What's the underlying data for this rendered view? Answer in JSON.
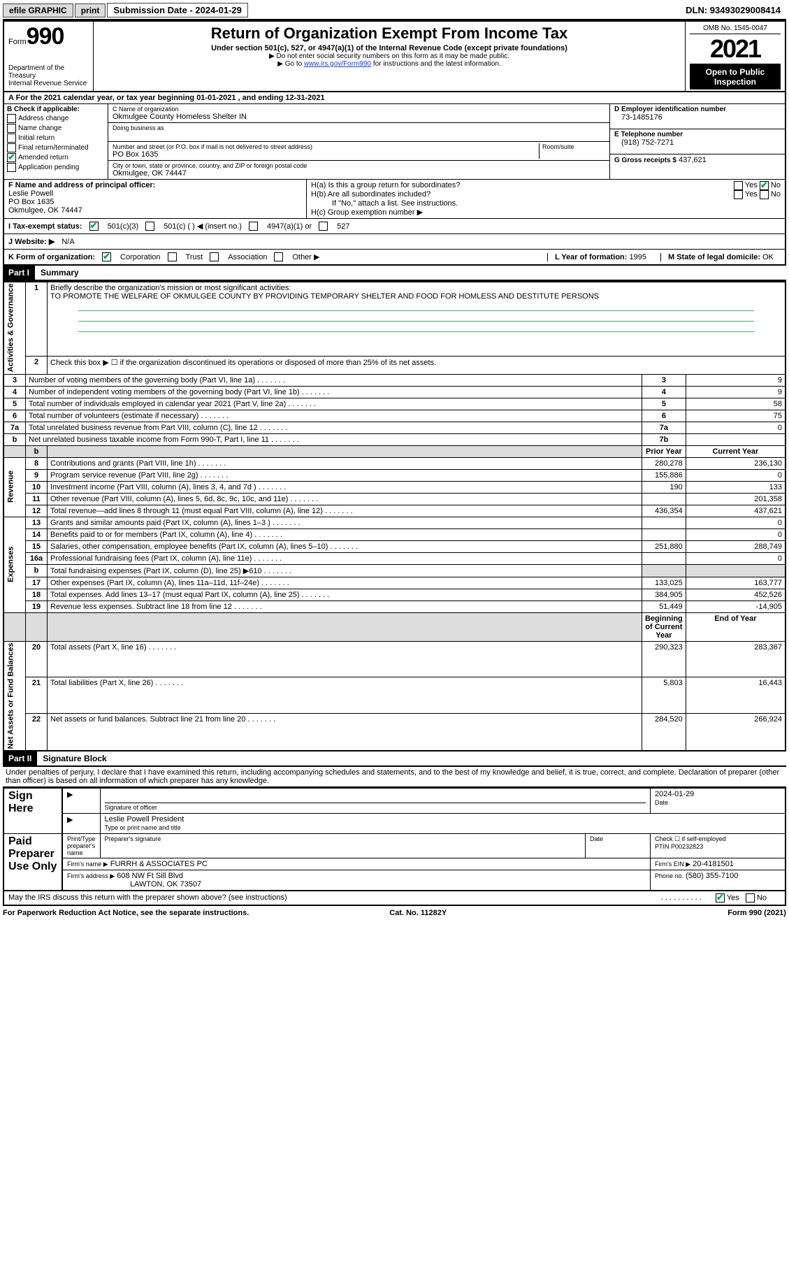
{
  "topbar": {
    "efile": "efile GRAPHIC",
    "print": "print",
    "subdate_label": "Submission Date - 2024-01-29",
    "dln": "DLN: 93493029008414"
  },
  "header": {
    "form_word": "Form",
    "form_no": "990",
    "dept": "Department of the Treasury\nInternal Revenue Service",
    "title": "Return of Organization Exempt From Income Tax",
    "subtitle": "Under section 501(c), 527, or 4947(a)(1) of the Internal Revenue Code (except private foundations)",
    "note1": "▶ Do not enter social security numbers on this form as it may be made public.",
    "note2_pre": "▶ Go to ",
    "note2_link": "www.irs.gov/Form990",
    "note2_post": " for instructions and the latest information.",
    "omb": "OMB No. 1545-0047",
    "year": "2021",
    "otp": "Open to Public Inspection"
  },
  "rowA": "A For the 2021 calendar year, or tax year beginning 01-01-2021   , and ending 12-31-2021",
  "boxB": {
    "label": "B Check if applicable:",
    "opts": [
      "Address change",
      "Name change",
      "Initial return",
      "Final return/terminated",
      "Amended return",
      "Application pending"
    ],
    "checked_idx": 4
  },
  "boxC": {
    "name_lbl": "C Name of organization",
    "name": "Okmulgee County Homeless Shelter IN",
    "dba_lbl": "Doing business as",
    "addr_lbl": "Number and street (or P.O. box if mail is not delivered to street address)",
    "room_lbl": "Room/suite",
    "addr": "PO Box 1635",
    "city_lbl": "City or town, state or province, country, and ZIP or foreign postal code",
    "city": "Okmulgee, OK  74447"
  },
  "boxD": {
    "lbl": "D Employer identification number",
    "val": "73-1485176"
  },
  "boxE": {
    "lbl": "E Telephone number",
    "val": "(918) 752-7271"
  },
  "boxG": {
    "lbl": "G Gross receipts $",
    "val": "437,621"
  },
  "boxF": {
    "lbl": "F Name and address of principal officer:",
    "name": "Leslie Powell",
    "addr": "PO Box 1635",
    "city": "Okmulgee, OK  74447"
  },
  "boxH": {
    "ha": "H(a)  Is this a group return for subordinates?",
    "hb": "H(b)  Are all subordinates included?",
    "hb_note": "If \"No,\" attach a list. See instructions.",
    "hc": "H(c)  Group exemption number ▶",
    "yes": "Yes",
    "no": "No"
  },
  "rowI": {
    "lbl": "I  Tax-exempt status:",
    "o1": "501(c)(3)",
    "o2": "501(c) (  ) ◀ (insert no.)",
    "o3": "4947(a)(1) or",
    "o4": "527"
  },
  "rowJ": {
    "lbl": "J  Website: ▶",
    "val": "N/A"
  },
  "rowK": {
    "lbl": "K Form of organization:",
    "o1": "Corporation",
    "o2": "Trust",
    "o3": "Association",
    "o4": "Other ▶"
  },
  "rowL": {
    "lbl": "L Year of formation:",
    "val": "1995"
  },
  "rowM": {
    "lbl": "M State of legal domicile:",
    "val": "OK"
  },
  "part1": {
    "hdr": "Part I",
    "title": "Summary"
  },
  "summary": {
    "q1_lbl": "Briefly describe the organization's mission or most significant activities:",
    "q1_val": "TO PROMOTE THE WELFARE OF OKMULGEE COUNTY BY PROVIDING TEMPORARY SHELTER AND FOOD FOR HOMLESS AND DESTITUTE PERSONS",
    "q2": "Check this box ▶ ☐ if the organization discontinued its operations or disposed of more than 25% of its net assets.",
    "lines_gov": [
      {
        "n": "3",
        "t": "Number of voting members of the governing body (Part VI, line 1a)",
        "box": "3",
        "v": "9"
      },
      {
        "n": "4",
        "t": "Number of independent voting members of the governing body (Part VI, line 1b)",
        "box": "4",
        "v": "9"
      },
      {
        "n": "5",
        "t": "Total number of individuals employed in calendar year 2021 (Part V, line 2a)",
        "box": "5",
        "v": "58"
      },
      {
        "n": "6",
        "t": "Total number of volunteers (estimate if necessary)",
        "box": "6",
        "v": "75"
      },
      {
        "n": "7a",
        "t": "Total unrelated business revenue from Part VIII, column (C), line 12",
        "box": "7a",
        "v": "0"
      },
      {
        "n": "b",
        "t": "Net unrelated business taxable income from Form 990-T, Part I, line 11",
        "box": "7b",
        "v": ""
      }
    ],
    "col_prior": "Prior Year",
    "col_curr": "Current Year",
    "rev": [
      {
        "n": "8",
        "t": "Contributions and grants (Part VIII, line 1h)",
        "p": "280,278",
        "c": "236,130"
      },
      {
        "n": "9",
        "t": "Program service revenue (Part VIII, line 2g)",
        "p": "155,886",
        "c": "0"
      },
      {
        "n": "10",
        "t": "Investment income (Part VIII, column (A), lines 3, 4, and 7d )",
        "p": "190",
        "c": "133"
      },
      {
        "n": "11",
        "t": "Other revenue (Part VIII, column (A), lines 5, 6d, 8c, 9c, 10c, and 11e)",
        "p": "",
        "c": "201,358"
      },
      {
        "n": "12",
        "t": "Total revenue—add lines 8 through 11 (must equal Part VIII, column (A), line 12)",
        "p": "436,354",
        "c": "437,621"
      }
    ],
    "exp": [
      {
        "n": "13",
        "t": "Grants and similar amounts paid (Part IX, column (A), lines 1–3 )",
        "p": "",
        "c": "0"
      },
      {
        "n": "14",
        "t": "Benefits paid to or for members (Part IX, column (A), line 4)",
        "p": "",
        "c": "0"
      },
      {
        "n": "15",
        "t": "Salaries, other compensation, employee benefits (Part IX, column (A), lines 5–10)",
        "p": "251,880",
        "c": "288,749"
      },
      {
        "n": "16a",
        "t": "Professional fundraising fees (Part IX, column (A), line 11e)",
        "p": "",
        "c": "0"
      },
      {
        "n": "b",
        "t": "Total fundraising expenses (Part IX, column (D), line 25) ▶610",
        "p": "SHADE",
        "c": "SHADE"
      },
      {
        "n": "17",
        "t": "Other expenses (Part IX, column (A), lines 11a–11d, 11f–24e)",
        "p": "133,025",
        "c": "163,777"
      },
      {
        "n": "18",
        "t": "Total expenses. Add lines 13–17 (must equal Part IX, column (A), line 25)",
        "p": "384,905",
        "c": "452,526"
      },
      {
        "n": "19",
        "t": "Revenue less expenses. Subtract line 18 from line 12",
        "p": "51,449",
        "c": "-14,905"
      }
    ],
    "col_beg": "Beginning of Current Year",
    "col_end": "End of Year",
    "net": [
      {
        "n": "20",
        "t": "Total assets (Part X, line 16)",
        "p": "290,323",
        "c": "283,367"
      },
      {
        "n": "21",
        "t": "Total liabilities (Part X, line 26)",
        "p": "5,803",
        "c": "16,443"
      },
      {
        "n": "22",
        "t": "Net assets or fund balances. Subtract line 21 from line 20",
        "p": "284,520",
        "c": "266,924"
      }
    ],
    "side_gov": "Activities & Governance",
    "side_rev": "Revenue",
    "side_exp": "Expenses",
    "side_net": "Net Assets or Fund Balances"
  },
  "part2": {
    "hdr": "Part II",
    "title": "Signature Block",
    "decl": "Under penalties of perjury, I declare that I have examined this return, including accompanying schedules and statements, and to the best of my knowledge and belief, it is true, correct, and complete. Declaration of preparer (other than officer) is based on all information of which preparer has any knowledge."
  },
  "sign": {
    "here": "Sign Here",
    "sig_lbl": "Signature of officer",
    "date_lbl": "Date",
    "date": "2024-01-29",
    "name": "Leslie Powell  President",
    "name_lbl": "Type or print name and title"
  },
  "paid": {
    "title": "Paid Preparer Use Only",
    "c1": "Print/Type preparer's name",
    "c2": "Preparer's signature",
    "c3": "Date",
    "c4": "Check ☐ if self-employed",
    "c5_lbl": "PTIN",
    "c5": "P00232823",
    "firm_lbl": "Firm's name    ▶",
    "firm": "FURRH & ASSOCIATES PC",
    "ein_lbl": "Firm's EIN ▶",
    "ein": "20-4181501",
    "addr_lbl": "Firm's address ▶",
    "addr": "608 NW Ft Sill Blvd",
    "addr2": "LAWTON, OK  73507",
    "phone_lbl": "Phone no.",
    "phone": "(580) 355-7100"
  },
  "discuss": "May the IRS discuss this return with the preparer shown above? (see instructions)",
  "footer": {
    "l": "For Paperwork Reduction Act Notice, see the separate instructions.",
    "m": "Cat. No. 11282Y",
    "r": "Form 990 (2021)"
  }
}
